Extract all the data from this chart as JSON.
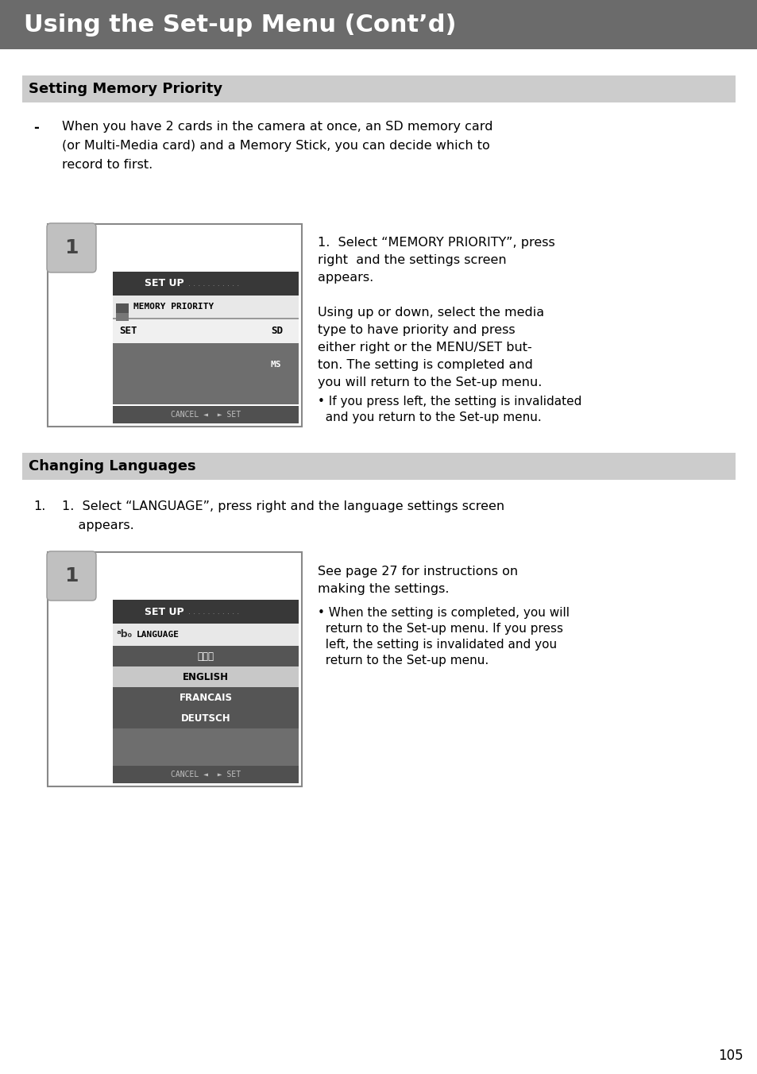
{
  "page_title": "Using the Set-up Menu (Cont’d)",
  "title_bg": "#6b6b6b",
  "title_color": "#ffffff",
  "title_fontsize": 22,
  "section1_title": "Setting Memory Priority",
  "section1_bg": "#cccccc",
  "section1_text_line1": "When you have 2 cards in the camera at once, an SD memory card",
  "section1_text_line2": "(or Multi-Media card) and a Memory Stick, you can decide which to",
  "section1_text_line3": "record to first.",
  "section1_bullet_char": "-",
  "section1_step1_para1_line1": "1.  Select “MEMORY PRIORITY”, press",
  "section1_step1_para1_line2": "right  and the settings screen",
  "section1_step1_para1_line3": "appears.",
  "section1_step1_para2_line1": "Using up or down, select the media",
  "section1_step1_para2_line2": "type to have priority and press",
  "section1_step1_para2_line3": "either right or the MENU/SET but-",
  "section1_step1_para2_line4": "ton. The setting is completed and",
  "section1_step1_para2_line5": "you will return to the Set-up menu.",
  "section1_bullet2_line1": "• If you press left, the setting is invalidated",
  "section1_bullet2_line2": "  and you return to the Set-up menu.",
  "section2_title": "Changing Languages",
  "section2_bg": "#cccccc",
  "section2_step1_line1": "1.  Select “LANGUAGE”, press right and the language settings screen",
  "section2_step1_line2": "    appears.",
  "section2_right_text1": "See page 27 for instructions on",
  "section2_right_text2": "making the settings.",
  "section2_bullet_line1": "• When the setting is completed, you will",
  "section2_bullet_line2": "  return to the Set-up menu. If you press",
  "section2_bullet_line3": "  left, the setting is invalidated and you",
  "section2_bullet_line4": "  return to the Set-up menu.",
  "page_number": "105",
  "screen1_setup_label": "SET UP",
  "screen1_dots": ". . . . . . . . . . .",
  "screen1_menu_item": "MEMORY PRIORITY",
  "screen1_set_label": "SET",
  "screen1_sd_label": "SD",
  "screen1_ms_label": "MS",
  "screen1_cancel_set": "CANCEL ◄  ► SET",
  "screen2_setup_label": "SET UP",
  "screen2_dots": ". . . . . . . . . . .",
  "screen2_language_label": "LANGUAGE",
  "screen2_lang_items": [
    "日本語",
    "ENGLISH",
    "FRANCAIS",
    "DEUTSCH"
  ],
  "screen2_cancel_set": "CANCEL ◄  ► SET",
  "bg_color": "#ffffff",
  "body_fontsize": 11.5,
  "section_title_fontsize": 13
}
